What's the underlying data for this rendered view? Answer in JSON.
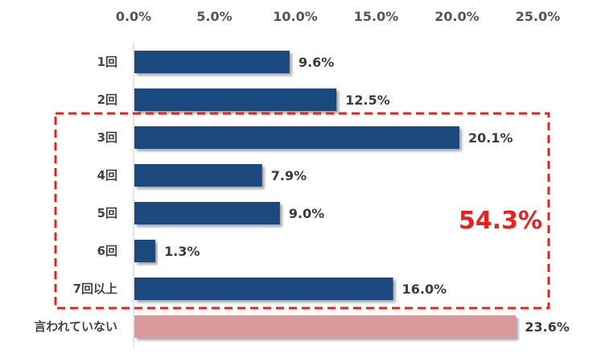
{
  "chart_data": {
    "type": "bar",
    "orientation": "horizontal",
    "categories": [
      "1回",
      "2回",
      "3回",
      "4回",
      "5回",
      "6回",
      "7回以上",
      "言われていない"
    ],
    "values": [
      9.6,
      12.5,
      20.1,
      7.9,
      9.0,
      1.3,
      16.0,
      23.6
    ],
    "value_labels": [
      "9.6%",
      "12.5%",
      "20.1%",
      "7.9%",
      "9.0%",
      "1.3%",
      "16.0%",
      "23.6%"
    ],
    "xlim": [
      0,
      25
    ],
    "x_ticks": [
      "0.0%",
      "5.0%",
      "10.0%",
      "15.0%",
      "20.0%",
      "25.0%"
    ],
    "axis_position": "top",
    "grid": false,
    "bar_colors": [
      "#1f4a7d",
      "#1f4a7d",
      "#1f4a7d",
      "#1f4a7d",
      "#1f4a7d",
      "#1f4a7d",
      "#1f4a7d",
      "#d99a9b"
    ],
    "highlight": {
      "categories": [
        "3回",
        "4回",
        "5回",
        "6回",
        "7回以上"
      ],
      "label": "54.3%",
      "color": "#e8211d",
      "border": "dashed"
    }
  }
}
